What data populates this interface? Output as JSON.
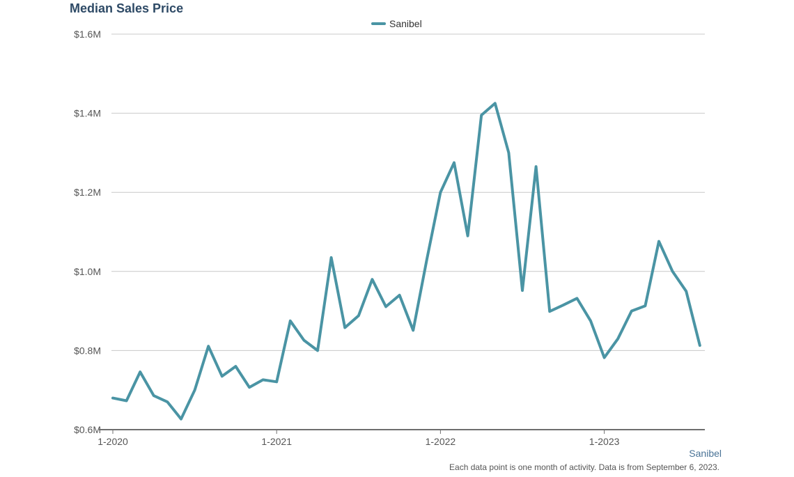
{
  "title": "Median Sales Price",
  "region_label": "Sanibel",
  "footnote": "Each data point is one month of activity. Data is from September 6, 2023.",
  "chart_data": {
    "type": "line",
    "title": "Median Sales Price",
    "xlabel": "",
    "ylabel": "",
    "x_tick_labels": [
      "1-2020",
      "1-2021",
      "1-2022",
      "1-2023"
    ],
    "y_tick_labels": [
      "$0.6M",
      "$0.8M",
      "$1.0M",
      "$1.2M",
      "$1.4M",
      "$1.6M"
    ],
    "y_ticks": [
      600000,
      800000,
      1000000,
      1200000,
      1400000,
      1600000
    ],
    "ylim": [
      600000,
      1600000
    ],
    "grid": true,
    "legend_position": "top-center",
    "series": [
      {
        "name": "Sanibel",
        "color": "#4a94a4",
        "x": [
          "2020-01",
          "2020-02",
          "2020-03",
          "2020-04",
          "2020-05",
          "2020-06",
          "2020-07",
          "2020-08",
          "2020-09",
          "2020-10",
          "2020-11",
          "2020-12",
          "2021-01",
          "2021-02",
          "2021-03",
          "2021-04",
          "2021-05",
          "2021-06",
          "2021-07",
          "2021-08",
          "2021-09",
          "2021-10",
          "2021-11",
          "2021-12",
          "2022-01",
          "2022-02",
          "2022-03",
          "2022-04",
          "2022-05",
          "2022-06",
          "2022-07",
          "2022-08",
          "2022-09",
          "2022-10",
          "2022-11",
          "2022-12",
          "2023-01",
          "2023-02",
          "2023-03",
          "2023-04",
          "2023-05",
          "2023-06",
          "2023-07",
          "2023-08"
        ],
        "values": [
          680000,
          673000,
          746000,
          686000,
          670000,
          627000,
          700000,
          811000,
          735000,
          760000,
          707000,
          726000,
          721000,
          875000,
          826000,
          800000,
          1035000,
          858000,
          888000,
          980000,
          911000,
          940000,
          851000,
          1030000,
          1200000,
          1275000,
          1090000,
          1395000,
          1425000,
          1300000,
          952000,
          1265000,
          899000,
          915000,
          932000,
          875000,
          782000,
          830000,
          900000,
          913000,
          1076000,
          1000000,
          950000,
          813000
        ]
      }
    ]
  }
}
